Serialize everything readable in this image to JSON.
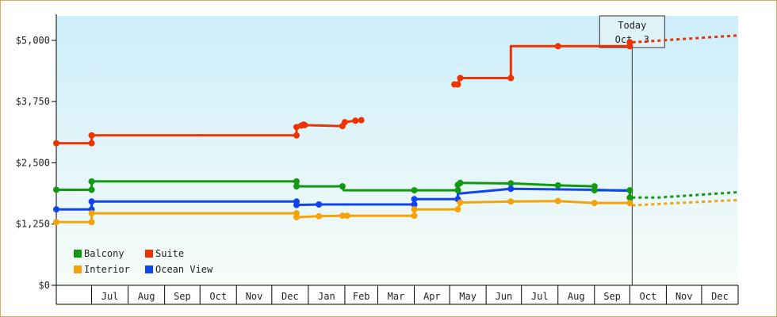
{
  "chart_data": {
    "type": "line",
    "title": "",
    "xlabel": "",
    "ylabel": "",
    "y_ticks": [
      "$0",
      "$1,250",
      "$2,500",
      "$3,750",
      "$5,000"
    ],
    "ylim": [
      0,
      5500
    ],
    "xlim": [
      "2009-06-01",
      "2011-01-01"
    ],
    "x_ticks": [
      "Jul",
      "Aug",
      "Sep",
      "Oct",
      "Nov",
      "Dec",
      "Jan",
      "Feb",
      "Mar",
      "Apr",
      "May",
      "Jun",
      "Jul",
      "Aug",
      "Sep",
      "Oct",
      "Nov",
      "Dec"
    ],
    "grid": false,
    "legend_position": "bottom-left",
    "today": {
      "line1": "Today",
      "line2": "Oct. 3",
      "date": "2010-10-03"
    },
    "series": [
      {
        "name": "Suite",
        "color": "#ee3300",
        "x": [
          "2009-06-01",
          "2009-07-01",
          "2009-07-01",
          "2009-12-22",
          "2009-12-22",
          "2009-12-26",
          "2009-12-28",
          "2009-12-29",
          "2010-01-30",
          "2010-02-01",
          "2010-02-10",
          "2010-02-15"
        ],
        "y": [
          2900,
          2900,
          3060,
          3060,
          3230,
          3260,
          3280,
          3270,
          3250,
          3330,
          3360,
          3370
        ],
        "markers": [
          0,
          1,
          2,
          3,
          4,
          5,
          6,
          7,
          8,
          9,
          10,
          11
        ]
      },
      {
        "name": "Suite",
        "color": "#ee3300",
        "x": [
          "2010-05-05",
          "2010-05-08",
          "2010-05-10",
          "2010-05-10",
          "2010-06-22",
          "2010-06-22",
          "2010-08-01",
          "2010-10-01",
          "2010-10-01"
        ],
        "y": [
          4100,
          4100,
          4230,
          4230,
          4230,
          4880,
          4880,
          4880,
          4960
        ],
        "markers": [
          0,
          1,
          2,
          4,
          6,
          7,
          8
        ]
      },
      {
        "name": "Balcony",
        "color": "#119911",
        "x": [
          "2009-06-01",
          "2009-07-01",
          "2009-07-01",
          "2009-12-22",
          "2009-12-22",
          "2010-01-30",
          "2010-01-31",
          "2010-04-01",
          "2010-05-08",
          "2010-05-08",
          "2010-05-10",
          "2010-06-22",
          "2010-08-01",
          "2010-09-01",
          "2010-09-01",
          "2010-10-01",
          "2010-10-01"
        ],
        "y": [
          1950,
          1950,
          2120,
          2120,
          2020,
          2020,
          1940,
          1940,
          1940,
          2050,
          2090,
          2080,
          2040,
          2020,
          1940,
          1940,
          1790
        ],
        "markers": [
          0,
          1,
          2,
          3,
          4,
          5,
          7,
          8,
          9,
          10,
          11,
          12,
          13,
          14,
          15,
          16
        ]
      },
      {
        "name": "Ocean View",
        "color": "#1144ee",
        "x": [
          "2009-06-01",
          "2009-07-01",
          "2009-07-01",
          "2009-12-22",
          "2009-12-22",
          "2010-01-10",
          "2010-04-01",
          "2010-04-01",
          "2010-05-08",
          "2010-05-08",
          "2010-06-22",
          "2010-09-01",
          "2010-10-01"
        ],
        "y": [
          1550,
          1550,
          1710,
          1710,
          1640,
          1650,
          1650,
          1760,
          1760,
          1870,
          1970,
          1950,
          1930
        ],
        "markers": [
          0,
          1,
          2,
          3,
          4,
          5,
          6,
          7,
          8,
          10
        ]
      },
      {
        "name": "Interior",
        "color": "#f5a30a",
        "x": [
          "2009-06-01",
          "2009-07-01",
          "2009-07-01",
          "2009-12-22",
          "2009-12-22",
          "2010-01-10",
          "2010-01-30",
          "2010-02-03",
          "2010-04-01",
          "2010-04-01",
          "2010-05-08",
          "2010-05-10",
          "2010-06-22",
          "2010-08-01",
          "2010-09-01",
          "2010-10-01"
        ],
        "y": [
          1290,
          1290,
          1470,
          1470,
          1390,
          1410,
          1420,
          1420,
          1420,
          1550,
          1550,
          1690,
          1710,
          1720,
          1680,
          1680
        ],
        "markers": [
          0,
          1,
          2,
          3,
          4,
          5,
          6,
          7,
          8,
          9,
          10,
          11,
          12,
          13,
          14,
          15
        ]
      }
    ],
    "forecast": [
      {
        "color": "#ee3300",
        "x": [
          "2010-10-03",
          "2011-01-01"
        ],
        "y": [
          4960,
          5100
        ]
      },
      {
        "color": "#119911",
        "x": [
          "2010-10-03",
          "2010-10-25",
          "2011-01-01"
        ],
        "y": [
          1790,
          1790,
          1900
        ]
      },
      {
        "color": "#f5a30a",
        "x": [
          "2010-10-03",
          "2010-10-25",
          "2011-01-01"
        ],
        "y": [
          1630,
          1660,
          1740
        ]
      }
    ],
    "legend": [
      {
        "label": "Balcony",
        "color": "#119911"
      },
      {
        "label": "Suite",
        "color": "#ee3300"
      },
      {
        "label": "Interior",
        "color": "#f5a30a"
      },
      {
        "label": "Ocean View",
        "color": "#1144ee"
      }
    ]
  }
}
